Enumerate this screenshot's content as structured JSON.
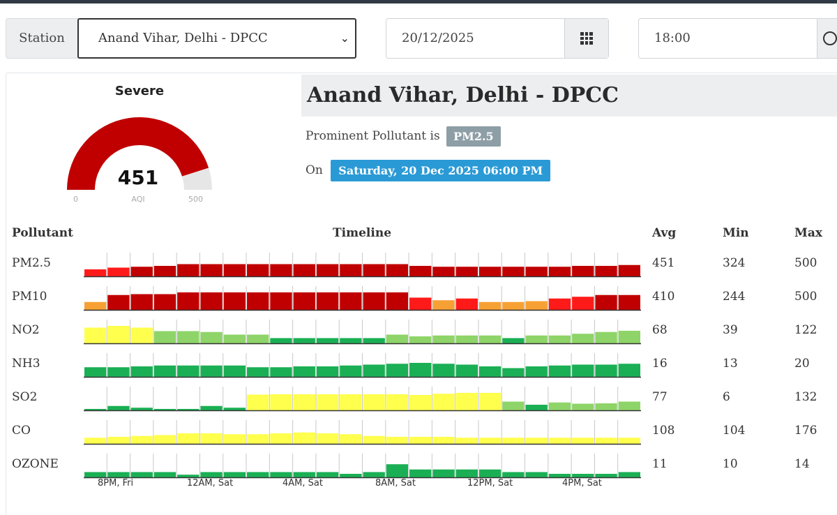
{
  "controls": {
    "station_label": "Station",
    "station_value": "Anand Vihar, Delhi - DPCC",
    "date_value": "20/12/2025",
    "time_value": "18:00"
  },
  "gauge": {
    "category": "Severe",
    "value": "451",
    "unit": "AQI",
    "min": "0",
    "max": "500",
    "fraction": 0.902,
    "color": "#c00000",
    "track_color": "#e6e6e6"
  },
  "station": {
    "title": "Anand Vihar, Delhi - DPCC",
    "prominent_prefix": "Prominent Pollutant is",
    "prominent_value": "PM2.5",
    "on_prefix": "On",
    "datetime": "Saturday, 20 Dec 2025 06:00 PM"
  },
  "table": {
    "headers": {
      "pollutant": "Pollutant",
      "timeline": "Timeline",
      "avg": "Avg",
      "min": "Min",
      "max": "Max"
    },
    "time_labels": [
      "8PM, Fri",
      "12AM, Sat",
      "4AM, Sat",
      "8AM, Sat",
      "12PM, Sat",
      "4PM, Sat"
    ],
    "colors": {
      "dark_red": "#c00000",
      "red": "#ff1a1a",
      "orange": "#f7a135",
      "yellow": "#ffff4d",
      "light_green": "#8ed468",
      "green": "#1aaf54"
    },
    "rows": [
      {
        "name": "PM2.5",
        "avg": "451",
        "min": "324",
        "max": "500",
        "levels": [
          0.4,
          0.5,
          0.55,
          0.6,
          0.7,
          0.7,
          0.7,
          0.7,
          0.7,
          0.7,
          0.7,
          0.7,
          0.7,
          0.7,
          0.6,
          0.55,
          0.55,
          0.55,
          0.55,
          0.55,
          0.55,
          0.6,
          0.6,
          0.65
        ],
        "colors": [
          "red",
          "red",
          "dark_red",
          "dark_red",
          "dark_red",
          "dark_red",
          "dark_red",
          "dark_red",
          "dark_red",
          "dark_red",
          "dark_red",
          "dark_red",
          "dark_red",
          "dark_red",
          "dark_red",
          "dark_red",
          "dark_red",
          "dark_red",
          "dark_red",
          "dark_red",
          "dark_red",
          "dark_red",
          "dark_red",
          "dark_red"
        ]
      },
      {
        "name": "PM10",
        "avg": "410",
        "min": "244",
        "max": "500",
        "levels": [
          0.45,
          0.85,
          0.9,
          0.9,
          1,
          1,
          1,
          1,
          1,
          1,
          1,
          1,
          1,
          1,
          0.7,
          0.55,
          0.65,
          0.45,
          0.45,
          0.5,
          0.65,
          0.75,
          0.85,
          0.85
        ],
        "colors": [
          "orange",
          "dark_red",
          "dark_red",
          "dark_red",
          "dark_red",
          "dark_red",
          "dark_red",
          "dark_red",
          "dark_red",
          "dark_red",
          "dark_red",
          "dark_red",
          "dark_red",
          "dark_red",
          "red",
          "orange",
          "red",
          "orange",
          "orange",
          "orange",
          "red",
          "red",
          "dark_red",
          "dark_red"
        ]
      },
      {
        "name": "NO2",
        "avg": "68",
        "min": "39",
        "max": "122",
        "levels": [
          0.9,
          1,
          0.9,
          0.7,
          0.7,
          0.65,
          0.5,
          0.5,
          0.3,
          0.3,
          0.3,
          0.3,
          0.3,
          0.5,
          0.4,
          0.45,
          0.45,
          0.45,
          0.3,
          0.45,
          0.45,
          0.55,
          0.65,
          0.72
        ],
        "colors": [
          "yellow",
          "yellow",
          "yellow",
          "light_green",
          "light_green",
          "light_green",
          "light_green",
          "light_green",
          "green",
          "green",
          "green",
          "green",
          "green",
          "light_green",
          "light_green",
          "light_green",
          "light_green",
          "light_green",
          "green",
          "light_green",
          "light_green",
          "light_green",
          "light_green",
          "light_green"
        ]
      },
      {
        "name": "NH3",
        "avg": "16",
        "min": "13",
        "max": "20",
        "levels": [
          0.55,
          0.55,
          0.6,
          0.65,
          0.65,
          0.65,
          0.65,
          0.55,
          0.55,
          0.6,
          0.6,
          0.65,
          0.7,
          0.75,
          0.8,
          0.75,
          0.7,
          0.6,
          0.5,
          0.6,
          0.65,
          0.7,
          0.7,
          0.75
        ],
        "colors": [
          "green",
          "green",
          "green",
          "green",
          "green",
          "green",
          "green",
          "green",
          "green",
          "green",
          "green",
          "green",
          "green",
          "green",
          "green",
          "green",
          "green",
          "green",
          "green",
          "green",
          "green",
          "green",
          "green",
          "green"
        ]
      },
      {
        "name": "SO2",
        "avg": "77",
        "min": "6",
        "max": "132",
        "levels": [
          0.05,
          0.25,
          0.15,
          0.05,
          0.05,
          0.25,
          0.15,
          0.9,
          0.92,
          0.92,
          0.92,
          0.92,
          0.92,
          0.92,
          0.88,
          0.95,
          1,
          1,
          0.5,
          0.32,
          0.45,
          0.38,
          0.4,
          0.5
        ],
        "colors": [
          "green",
          "green",
          "green",
          "green",
          "green",
          "green",
          "green",
          "yellow",
          "yellow",
          "yellow",
          "yellow",
          "yellow",
          "yellow",
          "yellow",
          "yellow",
          "yellow",
          "yellow",
          "yellow",
          "light_green",
          "green",
          "light_green",
          "light_green",
          "light_green",
          "light_green"
        ]
      },
      {
        "name": "CO",
        "avg": "108",
        "min": "104",
        "max": "176",
        "levels": [
          0.35,
          0.4,
          0.45,
          0.5,
          0.6,
          0.6,
          0.55,
          0.55,
          0.6,
          0.65,
          0.6,
          0.55,
          0.45,
          0.4,
          0.4,
          0.4,
          0.35,
          0.35,
          0.35,
          0.35,
          0.35,
          0.35,
          0.35,
          0.35
        ],
        "colors": [
          "yellow",
          "yellow",
          "yellow",
          "yellow",
          "yellow",
          "yellow",
          "yellow",
          "yellow",
          "yellow",
          "yellow",
          "yellow",
          "yellow",
          "yellow",
          "yellow",
          "yellow",
          "yellow",
          "yellow",
          "yellow",
          "yellow",
          "yellow",
          "yellow",
          "yellow",
          "yellow",
          "yellow"
        ]
      },
      {
        "name": "OZONE",
        "avg": "11",
        "min": "10",
        "max": "14",
        "levels": [
          0.3,
          0.3,
          0.3,
          0.3,
          0.15,
          0.3,
          0.3,
          0.3,
          0.3,
          0.3,
          0.3,
          0.2,
          0.3,
          0.75,
          0.45,
          0.45,
          0.45,
          0.45,
          0.3,
          0.3,
          0.2,
          0.2,
          0.2,
          0.3
        ],
        "colors": [
          "green",
          "green",
          "green",
          "green",
          "green",
          "green",
          "green",
          "green",
          "green",
          "green",
          "green",
          "green",
          "green",
          "green",
          "green",
          "green",
          "green",
          "green",
          "green",
          "green",
          "green",
          "green",
          "green",
          "green"
        ]
      }
    ]
  }
}
